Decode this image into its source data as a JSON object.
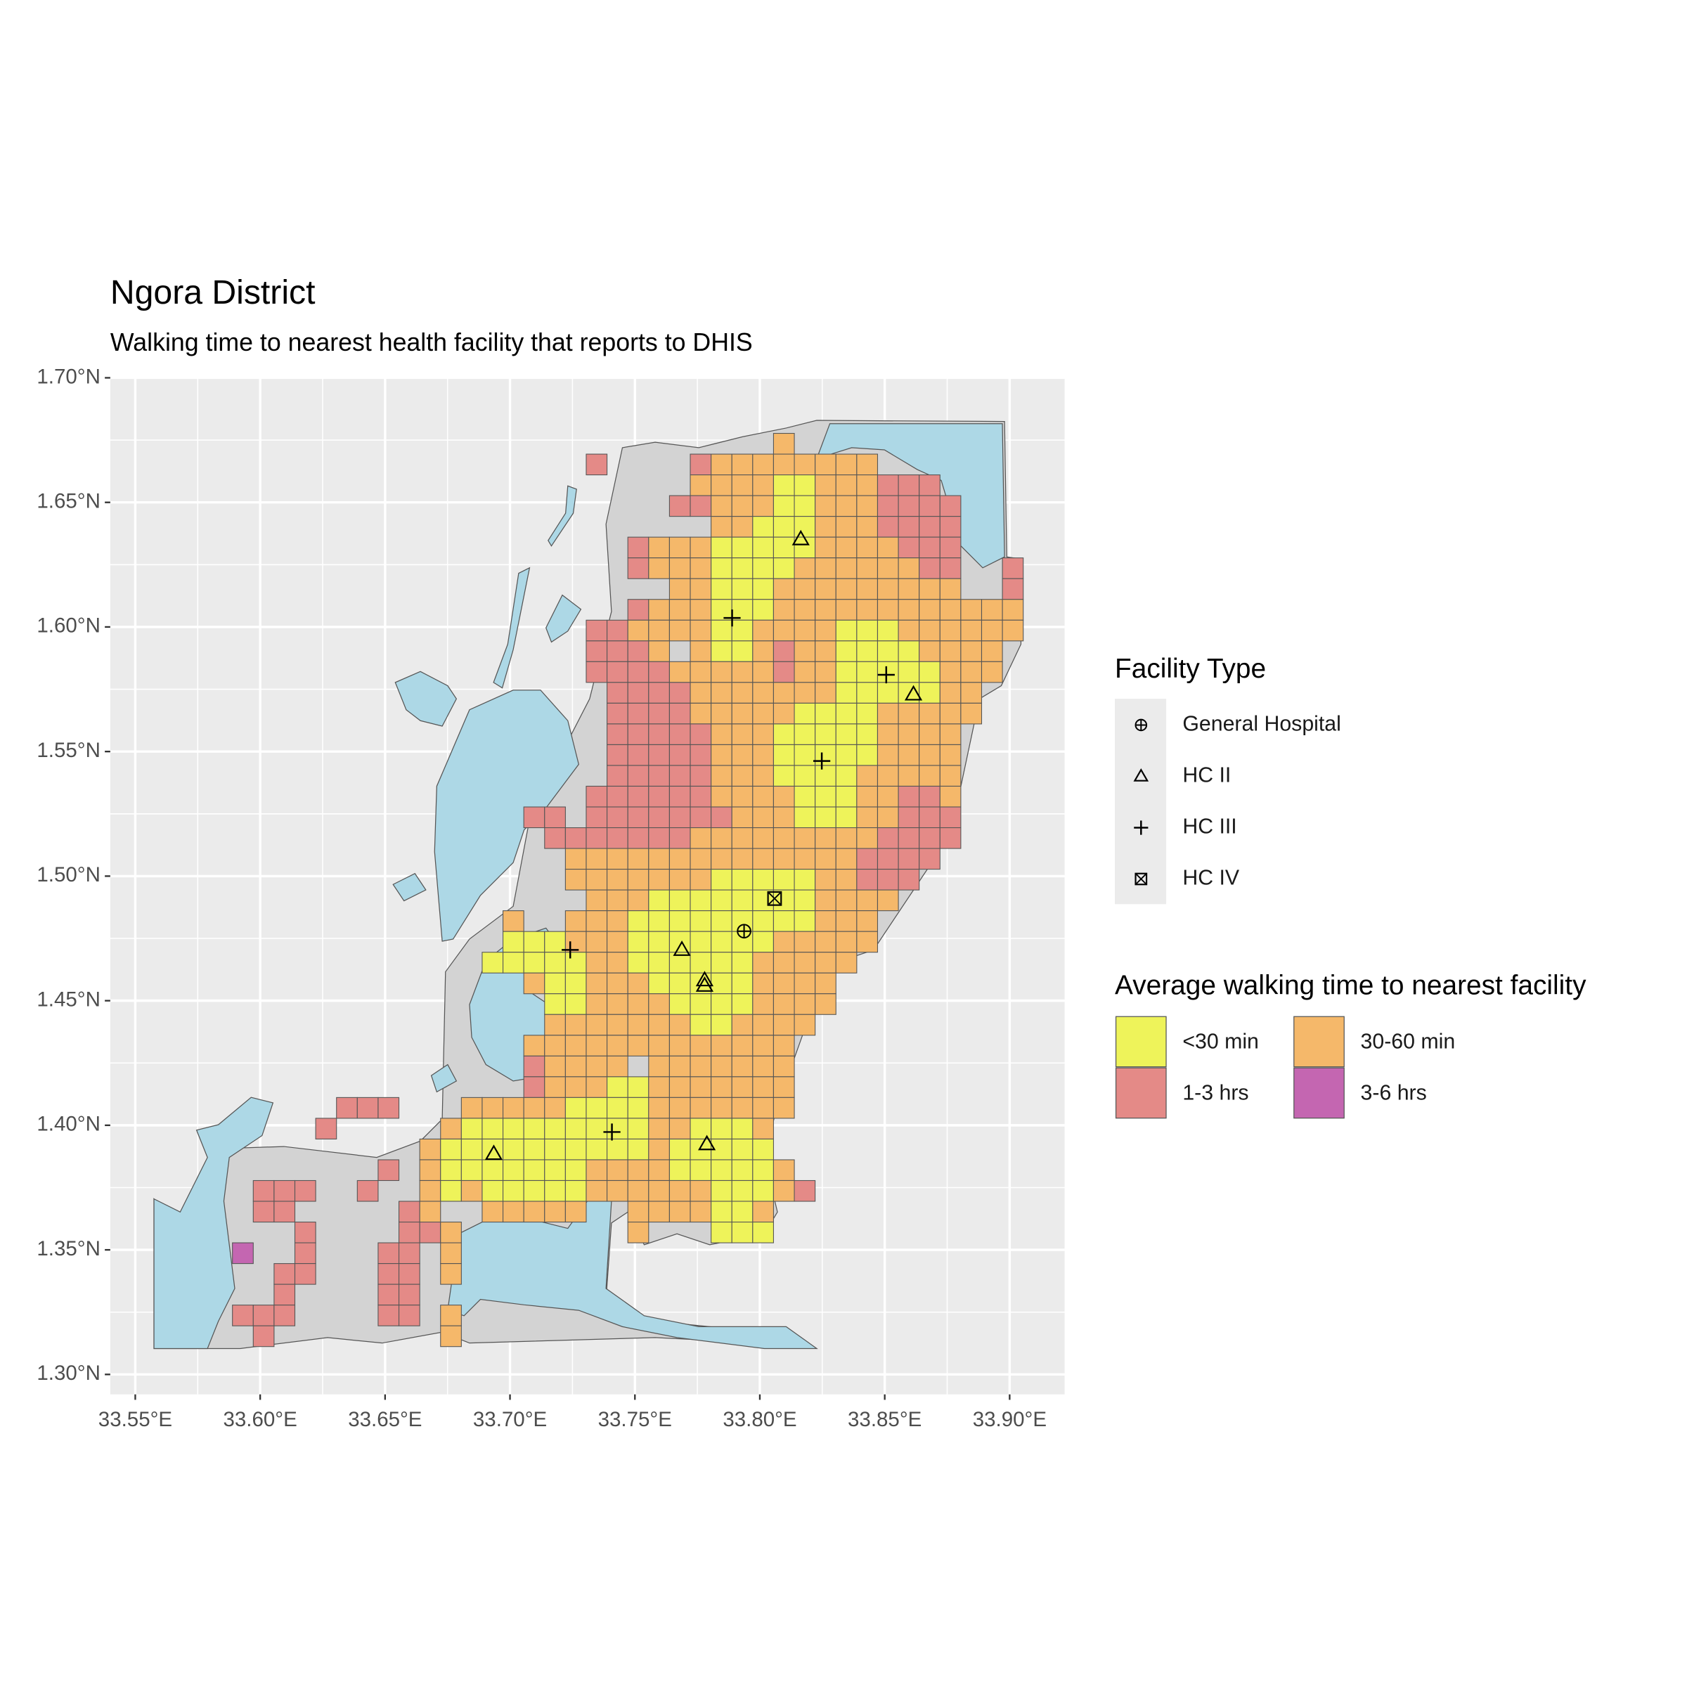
{
  "chart_data": {
    "type": "map",
    "title": "Ngora District",
    "subtitle": "Walking time to nearest health facility that reports to DHIS",
    "xlim": [
      33.54,
      33.922
    ],
    "ylim": [
      1.292,
      1.7
    ],
    "xticks": [
      {
        "value": 33.55,
        "label": "33.55°E"
      },
      {
        "value": 33.6,
        "label": "33.60°E"
      },
      {
        "value": 33.65,
        "label": "33.65°E"
      },
      {
        "value": 33.7,
        "label": "33.70°E"
      },
      {
        "value": 33.75,
        "label": "33.75°E"
      },
      {
        "value": 33.8,
        "label": "33.80°E"
      },
      {
        "value": 33.85,
        "label": "33.85°E"
      },
      {
        "value": 33.9,
        "label": "33.90°E"
      }
    ],
    "yticks": [
      {
        "value": 1.3,
        "label": "1.30°N"
      },
      {
        "value": 1.35,
        "label": "1.35°N"
      },
      {
        "value": 1.4,
        "label": "1.40°N"
      },
      {
        "value": 1.45,
        "label": "1.45°N"
      },
      {
        "value": 1.5,
        "label": "1.50°N"
      },
      {
        "value": 1.55,
        "label": "1.55°N"
      },
      {
        "value": 1.6,
        "label": "1.60°N"
      },
      {
        "value": 1.65,
        "label": "1.65°N"
      },
      {
        "value": 1.7,
        "label": "1.70°N"
      }
    ],
    "grid": true,
    "facility_legend": {
      "title": "Facility Type",
      "items": [
        {
          "label": "General Hospital",
          "lon": [
            33.7937
          ],
          "lat": [
            1.4779
          ]
        },
        {
          "label": "HC II",
          "lon": [
            33.8164,
            33.8615,
            33.7688,
            33.7779,
            33.7779,
            33.6935,
            33.7788
          ],
          "lat": [
            1.6352,
            1.5729,
            1.4704,
            1.4582,
            1.456,
            1.3885,
            1.3924
          ]
        },
        {
          "label": "HC III",
          "lon": [
            33.7889,
            33.8506,
            33.8248,
            33.7241,
            33.7408
          ],
          "lat": [
            1.6036,
            1.5808,
            1.5462,
            1.4704,
            1.3973
          ]
        },
        {
          "label": "HC IV",
          "lon": [
            33.8059
          ],
          "lat": [
            1.491
          ]
        }
      ]
    },
    "fill_legend": {
      "title": "Average walking time to nearest facility",
      "items": [
        {
          "label": "<30 min",
          "color": "#eef35a"
        },
        {
          "label": "30-60 min",
          "color": "#f5b86a"
        },
        {
          "label": "1-3 hrs",
          "color": "#e48a87"
        },
        {
          "label": "3-6 hrs",
          "color": "#c466b1"
        }
      ]
    },
    "cells": {
      "lon0": 33.5889,
      "lat0": 1.6777,
      "size": 0.00833,
      "rows": [
        [
          [
            26,
            "1"
          ]
        ],
        [
          [
            17,
            "2"
          ],
          [
            22,
            "211111111"
          ]
        ],
        [
          [
            22,
            "111100111222"
          ]
        ],
        [
          [
            21,
            "22111001112222"
          ]
        ],
        [
          [
            23,
            "110001112222"
          ]
        ],
        [
          [
            19,
            "2111000001111222"
          ]
        ],
        [
          [
            19,
            "2111000011111122"
          ],
          [
            37,
            "2"
          ]
        ],
        [
          [
            21,
            "11000111111111"
          ],
          [
            37,
            "2"
          ]
        ],
        [
          [
            19,
            "2111000111111111111"
          ]
        ],
        [
          [
            17,
            "221111001111000111111"
          ]
        ],
        [
          [
            17,
            "2221"
          ],
          [
            22,
            "100121100001111"
          ]
        ],
        [
          [
            17,
            "22221111121100000111"
          ]
        ],
        [
          [
            18,
            "222211111110000011"
          ]
        ],
        [
          [
            18,
            "222211111000011111"
          ]
        ],
        [
          [
            18,
            "22222111000001111"
          ]
        ],
        [
          [
            18,
            "22222111000001111"
          ]
        ],
        [
          [
            18,
            "22222111000011111"
          ]
        ],
        [
          [
            17,
            "222222111100011221"
          ]
        ],
        [
          [
            14,
            "22"
          ],
          [
            17,
            "222222211100011222"
          ]
        ],
        [
          [
            15,
            "22222221111111112222"
          ]
        ],
        [
          [
            16,
            "111111111111112222"
          ]
        ],
        [
          [
            16,
            "11111110000011222"
          ]
        ],
        [
          [
            17,
            "111000000001111"
          ]
        ],
        [
          [
            13,
            "1"
          ],
          [
            16,
            "111000000000111"
          ]
        ],
        [
          [
            13,
            "000111000000011111"
          ]
        ],
        [
          [
            12,
            "000001100000011111"
          ]
        ],
        [
          [
            14,
            "100111000001111"
          ]
        ],
        [
          [
            15,
            "00111100001111"
          ]
        ],
        [
          [
            15,
            "1111111001111"
          ]
        ],
        [
          [
            14,
            "1111111111111"
          ]
        ],
        [
          [
            14,
            "21111"
          ],
          [
            20,
            "1111111"
          ]
        ],
        [
          [
            14,
            "2111001111111"
          ]
        ],
        [
          [
            5,
            "222"
          ],
          [
            11,
            "1111100001111111"
          ]
        ],
        [
          [
            4,
            "2"
          ],
          [
            10,
            "1000000000110001"
          ]
        ],
        [
          [
            9,
            "10000000000100000"
          ]
        ],
        [
          [
            7,
            "2"
          ],
          [
            9,
            "100000001111000001"
          ]
        ],
        [
          [
            1,
            "222"
          ],
          [
            6,
            "2"
          ],
          [
            9,
            "1010000011111100012"
          ]
        ],
        [
          [
            1,
            "22"
          ],
          [
            8,
            "21"
          ],
          [
            12,
            "11111"
          ],
          [
            19,
            "1111001"
          ]
        ],
        [
          [
            3,
            "2"
          ],
          [
            8,
            "221"
          ],
          [
            19,
            "1"
          ],
          [
            23,
            "000"
          ]
        ],
        [
          [
            0,
            "3"
          ],
          [
            3,
            "2"
          ],
          [
            7,
            "22"
          ],
          [
            10,
            "1"
          ]
        ],
        [
          [
            2,
            "22"
          ],
          [
            7,
            "22"
          ],
          [
            10,
            "1"
          ]
        ],
        [
          [
            2,
            "2"
          ],
          [
            7,
            "22"
          ]
        ],
        [
          [
            0,
            "222"
          ],
          [
            7,
            "22"
          ],
          [
            10,
            "1"
          ]
        ],
        [
          [
            1,
            "2"
          ],
          [
            10,
            "1"
          ]
        ]
      ]
    }
  }
}
